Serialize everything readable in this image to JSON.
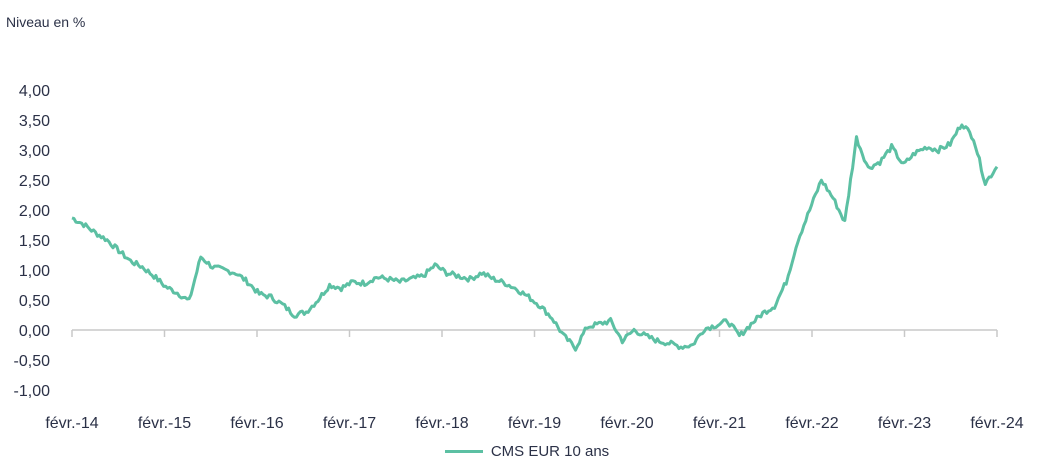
{
  "ylabel": "Niveau en %",
  "colors": {
    "series": "#5cc0a3",
    "axis": "#c8c8c8",
    "text": "#2b3147"
  },
  "chart_data": {
    "type": "line",
    "title": "",
    "xlabel": "",
    "ylabel": "Niveau en %",
    "ylim": [
      -1.0,
      4.0
    ],
    "grid": false,
    "legend_position": "bottom",
    "y_ticks": [
      "4,00",
      "3,50",
      "3,00",
      "2,50",
      "2,00",
      "1,50",
      "1,00",
      "0,50",
      "0,00",
      "-0,50",
      "-1,00"
    ],
    "x_ticks": [
      "févr.-14",
      "févr.-15",
      "févr.-16",
      "févr.-17",
      "févr.-18",
      "févr.-19",
      "févr.-20",
      "févr.-21",
      "févr.-22",
      "févr.-23",
      "févr.-24"
    ],
    "series": [
      {
        "name": "CMS EUR 10 ans",
        "x_start": "2014-02",
        "x_end": "2024-02",
        "values": [
          1.87,
          1.76,
          1.62,
          1.5,
          1.32,
          1.15,
          1.05,
          0.9,
          0.72,
          0.62,
          0.48,
          1.22,
          1.05,
          1.0,
          0.95,
          0.8,
          0.6,
          0.55,
          0.42,
          0.25,
          0.3,
          0.5,
          0.75,
          0.7,
          0.8,
          0.78,
          0.88,
          0.85,
          0.8,
          0.85,
          0.9,
          1.08,
          0.95,
          0.9,
          0.85,
          0.95,
          0.85,
          0.78,
          0.68,
          0.55,
          0.4,
          0.2,
          -0.1,
          -0.3,
          0.05,
          0.1,
          0.15,
          -0.18,
          0.0,
          -0.1,
          -0.18,
          -0.22,
          -0.28,
          -0.25,
          0.02,
          0.08,
          0.15,
          -0.1,
          0.1,
          0.28,
          0.4,
          0.8,
          1.5,
          2.0,
          2.5,
          2.2,
          1.8,
          3.2,
          2.7,
          2.8,
          3.05,
          2.75,
          2.95,
          3.05,
          3.0,
          3.1,
          3.45,
          3.2,
          2.45,
          2.72
        ]
      }
    ]
  }
}
